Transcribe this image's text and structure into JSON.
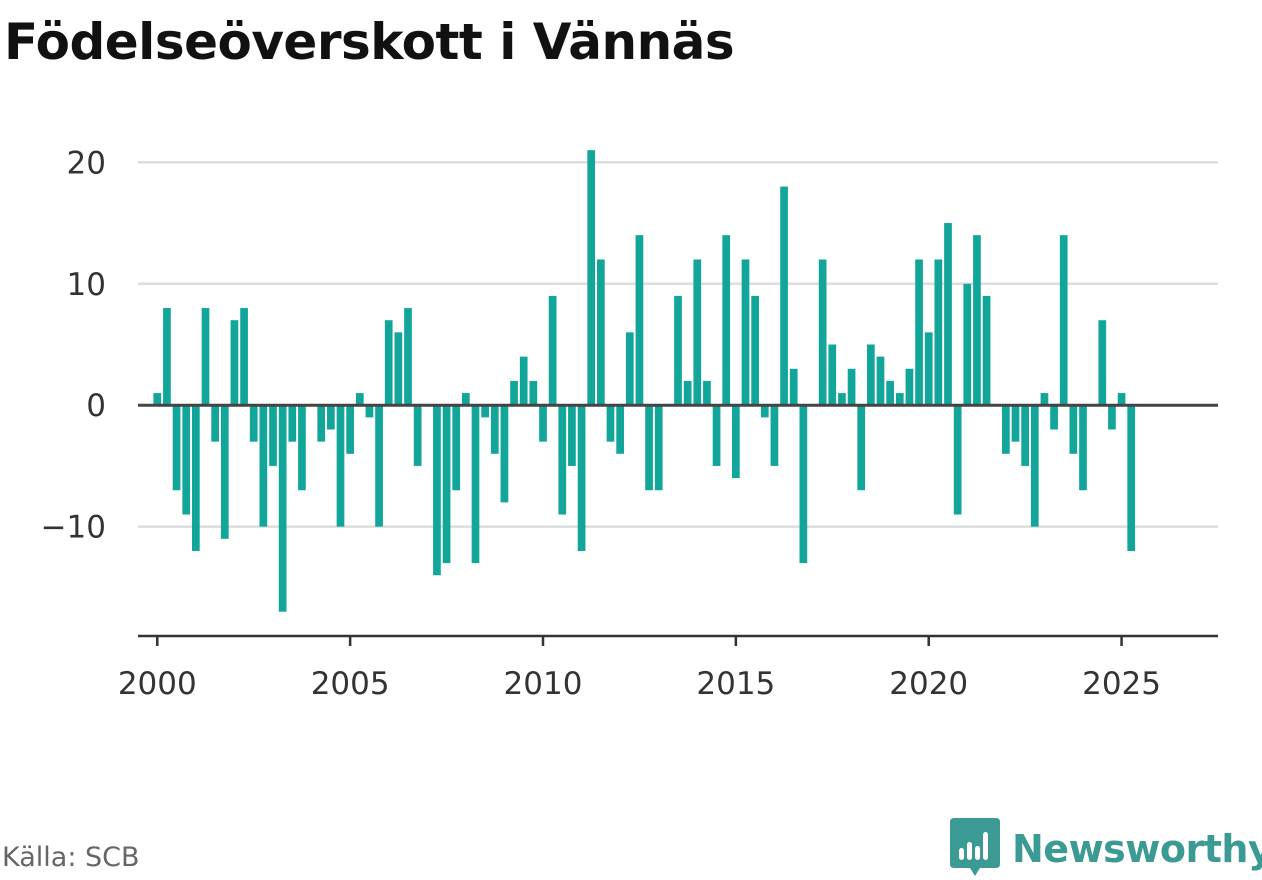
{
  "title": "Födelseöverskott i Vännäs",
  "source": "Källa: SCB",
  "brand": {
    "name": "Newsworthy",
    "icon": "newsworthy-logo-icon",
    "color": "#3b9a94"
  },
  "colors": {
    "bar": "#12a69b",
    "grid": "#dddddd",
    "zero": "#444444",
    "axis": "#333333"
  },
  "chart_data": {
    "type": "bar",
    "title": "Födelseöverskott i Vännäs",
    "xlabel": "",
    "ylabel": "",
    "frequency": "quarterly",
    "x_start": "2000 Q1",
    "xlim": [
      1999.5,
      2027.5
    ],
    "ylim": [
      -19,
      22
    ],
    "x_ticks": [
      2000,
      2005,
      2010,
      2015,
      2020,
      2025
    ],
    "x_tick_labels": [
      "2000",
      "2005",
      "2010",
      "2015",
      "2020",
      "2025"
    ],
    "y_ticks": [
      20,
      10,
      0,
      -10
    ],
    "y_tick_labels": [
      "20",
      "10",
      "0",
      "−10"
    ],
    "grid": true,
    "values": [
      1,
      8,
      -7,
      -9,
      -12,
      8,
      -3,
      -11,
      7,
      8,
      -3,
      -10,
      -5,
      -17,
      -3,
      -7,
      0,
      -3,
      -2,
      -10,
      -4,
      1,
      -1,
      -10,
      7,
      6,
      8,
      -5,
      0,
      -14,
      -13,
      -7,
      1,
      -13,
      -1,
      -4,
      -8,
      2,
      4,
      2,
      -3,
      9,
      -9,
      -5,
      -12,
      21,
      12,
      -3,
      -4,
      6,
      14,
      -7,
      -7,
      0,
      9,
      2,
      12,
      2,
      -5,
      14,
      -6,
      12,
      9,
      -1,
      -5,
      18,
      3,
      -13,
      0,
      12,
      5,
      1,
      3,
      -7,
      5,
      4,
      2,
      1,
      3,
      12,
      6,
      12,
      15,
      -9,
      10,
      14,
      9,
      0,
      -4,
      -3,
      -5,
      -10,
      1,
      -2,
      14,
      -4,
      -7,
      0,
      7,
      -2,
      1,
      -12
    ]
  }
}
